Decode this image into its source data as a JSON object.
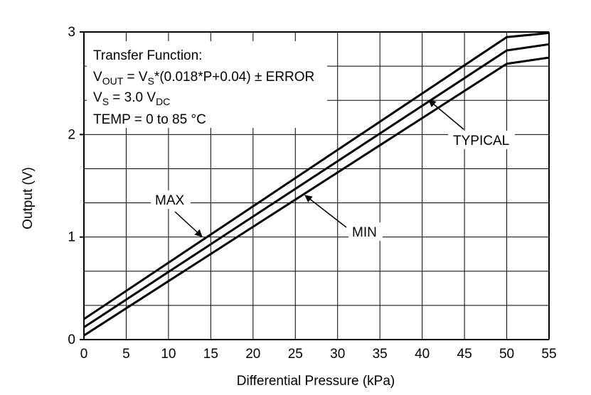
{
  "chart_data": {
    "type": "line",
    "title": "",
    "xlabel": "Differential Pressure (kPa)",
    "ylabel": "Output (V)",
    "xlim": [
      0,
      55
    ],
    "ylim": [
      0,
      3
    ],
    "x_ticks": [
      "0",
      "5",
      "10",
      "15",
      "20",
      "25",
      "30",
      "35",
      "40",
      "45",
      "50",
      "55"
    ],
    "y_ticks": [
      "0",
      "1",
      "2",
      "3"
    ],
    "grid": true,
    "series": [
      {
        "name": "MAX",
        "x": [
          0,
          50,
          55
        ],
        "y": [
          0.2,
          2.95,
          2.99
        ]
      },
      {
        "name": "TYPICAL",
        "x": [
          0,
          50,
          55
        ],
        "y": [
          0.12,
          2.82,
          2.88
        ]
      },
      {
        "name": "MIN",
        "x": [
          0,
          50,
          55
        ],
        "y": [
          0.04,
          2.69,
          2.75
        ]
      }
    ],
    "annotations": [
      {
        "label": "MAX"
      },
      {
        "label": "TYPICAL"
      },
      {
        "label": "MIN"
      }
    ],
    "text_box": {
      "line1": "Transfer Function:",
      "vout_v": "V",
      "vout_sub": "OUT",
      "vout_mid": " = V",
      "vout_s_sub": "S",
      "vout_rest": "*(0.018*P+0.04) ± ERROR",
      "vs_v": "V",
      "vs_sub": "S",
      "vs_mid": " = 3.0 V",
      "vs_dc_sub": "DC",
      "temp": "TEMP = 0 to 85 °C"
    }
  }
}
